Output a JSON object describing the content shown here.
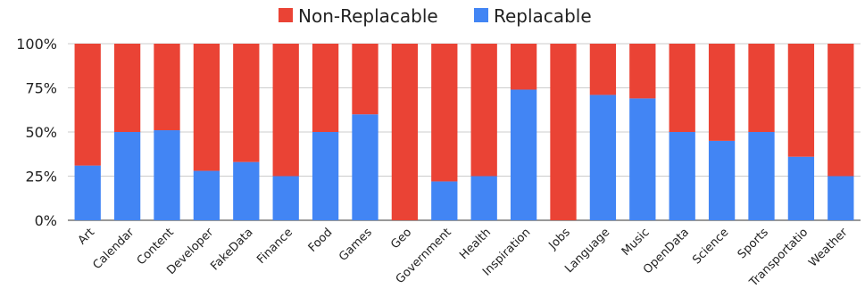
{
  "chart_data": {
    "type": "bar",
    "stacked": true,
    "categories": [
      "Art",
      "Calendar",
      "Content",
      "Developer",
      "FakeData",
      "Finance",
      "Food",
      "Games",
      "Geo",
      "Government",
      "Health",
      "Inspiration",
      "Jobs",
      "Language",
      "Music",
      "OpenData",
      "Science",
      "Sports",
      "Transportatio",
      "Weather"
    ],
    "series": [
      {
        "name": "Replacable",
        "color": "#4285f4",
        "values": [
          31,
          50,
          51,
          28,
          33,
          25,
          50,
          60,
          0,
          22,
          25,
          74,
          0,
          71,
          69,
          50,
          45,
          50,
          36,
          25
        ]
      },
      {
        "name": "Non-Replacable",
        "color": "#ea4335",
        "values": [
          69,
          50,
          49,
          72,
          67,
          75,
          50,
          40,
          100,
          78,
          75,
          26,
          100,
          29,
          31,
          50,
          55,
          50,
          64,
          75
        ]
      }
    ],
    "legend_order": [
      "Non-Replacable",
      "Replacable"
    ],
    "legend_position": "top",
    "y_ticks": [
      "0%",
      "25%",
      "50%",
      "75%",
      "100%"
    ],
    "ylim": [
      0,
      100
    ],
    "grid": true,
    "gridline_color": "#cccccc"
  }
}
